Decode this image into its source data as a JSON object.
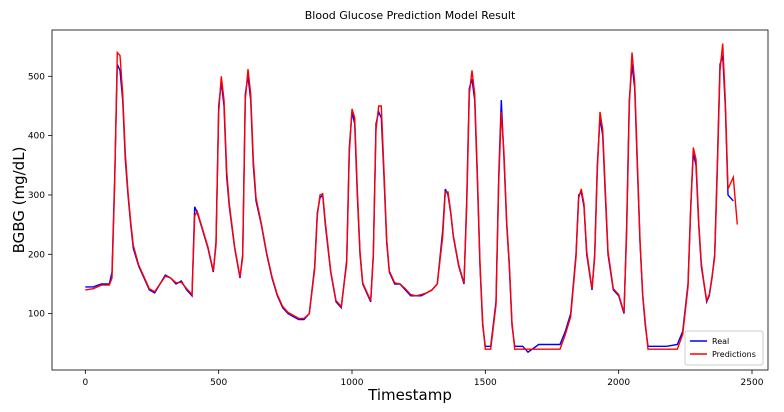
{
  "chart_data": {
    "type": "line",
    "title": "Blood Glucose Prediction Model Result",
    "x_label": "Timestamp",
    "y_label": "BGBG (mg/dL)",
    "xlim": [
      -125,
      2560
    ],
    "ylim": [
      5,
      578
    ],
    "xticks": [
      0,
      500,
      1000,
      1500,
      2000,
      2500
    ],
    "yticks": [
      100,
      200,
      300,
      400,
      500
    ],
    "legend": "lower right",
    "x": [
      0,
      30,
      60,
      90,
      100,
      110,
      120,
      130,
      140,
      150,
      160,
      170,
      180,
      200,
      220,
      240,
      260,
      280,
      300,
      320,
      340,
      360,
      380,
      400,
      410,
      420,
      440,
      460,
      480,
      490,
      500,
      510,
      520,
      530,
      540,
      560,
      580,
      590,
      600,
      610,
      620,
      630,
      640,
      660,
      680,
      700,
      720,
      740,
      760,
      780,
      800,
      820,
      840,
      860,
      870,
      880,
      890,
      900,
      920,
      940,
      960,
      980,
      990,
      1000,
      1010,
      1020,
      1030,
      1040,
      1060,
      1070,
      1080,
      1090,
      1100,
      1110,
      1120,
      1130,
      1140,
      1160,
      1180,
      1200,
      1220,
      1240,
      1260,
      1280,
      1300,
      1320,
      1340,
      1350,
      1360,
      1370,
      1380,
      1400,
      1420,
      1430,
      1440,
      1450,
      1460,
      1470,
      1480,
      1490,
      1500,
      1520,
      1540,
      1550,
      1560,
      1570,
      1580,
      1590,
      1600,
      1610,
      1640,
      1660,
      1700,
      1740,
      1780,
      1800,
      1820,
      1840,
      1850,
      1860,
      1870,
      1880,
      1900,
      1910,
      1920,
      1930,
      1940,
      1950,
      1960,
      1980,
      2000,
      2020,
      2030,
      2040,
      2050,
      2060,
      2070,
      2080,
      2090,
      2100,
      2110,
      2140,
      2180,
      2220,
      2240,
      2260,
      2270,
      2280,
      2290,
      2300,
      2310,
      2320,
      2330,
      2340,
      2350,
      2360,
      2370,
      2380,
      2390,
      2400,
      2410,
      2430,
      2445
    ],
    "series": [
      {
        "name": "Real",
        "color": "#0000ff",
        "values": [
          145,
          145,
          150,
          150,
          170,
          330,
          520,
          510,
          460,
          360,
          300,
          250,
          210,
          180,
          160,
          140,
          135,
          150,
          165,
          160,
          150,
          155,
          140,
          130,
          280,
          270,
          240,
          210,
          170,
          220,
          450,
          490,
          450,
          330,
          280,
          210,
          160,
          200,
          470,
          500,
          460,
          350,
          290,
          250,
          200,
          160,
          130,
          110,
          100,
          95,
          90,
          90,
          100,
          180,
          270,
          295,
          300,
          250,
          170,
          120,
          110,
          190,
          380,
          440,
          420,
          300,
          200,
          150,
          130,
          120,
          200,
          420,
          440,
          430,
          330,
          220,
          170,
          150,
          150,
          140,
          130,
          130,
          130,
          135,
          140,
          150,
          240,
          310,
          300,
          270,
          230,
          180,
          150,
          290,
          480,
          495,
          460,
          330,
          180,
          80,
          45,
          45,
          120,
          330,
          460,
          360,
          250,
          180,
          80,
          45,
          45,
          35,
          48,
          48,
          48,
          70,
          100,
          200,
          300,
          305,
          280,
          200,
          140,
          200,
          350,
          430,
          400,
          300,
          200,
          140,
          130,
          100,
          250,
          460,
          520,
          480,
          350,
          220,
          130,
          80,
          45,
          45,
          45,
          48,
          70,
          150,
          280,
          370,
          350,
          250,
          180,
          150,
          120,
          130,
          160,
          200,
          350,
          520,
          535,
          450,
          300,
          290,
          null
        ]
      },
      {
        "name": "Predictions",
        "color": "#ff0000",
        "values": [
          140,
          142,
          148,
          148,
          160,
          320,
          540,
          535,
          470,
          370,
          305,
          255,
          215,
          182,
          162,
          142,
          137,
          150,
          163,
          160,
          152,
          153,
          142,
          132,
          265,
          272,
          242,
          212,
          172,
          215,
          440,
          500,
          460,
          340,
          285,
          212,
          162,
          195,
          460,
          512,
          470,
          360,
          295,
          252,
          202,
          162,
          132,
          112,
          102,
          97,
          92,
          92,
          100,
          175,
          265,
          300,
          302,
          255,
          172,
          122,
          112,
          185,
          370,
          445,
          430,
          310,
          205,
          152,
          132,
          122,
          195,
          410,
          450,
          450,
          340,
          225,
          172,
          152,
          150,
          142,
          132,
          130,
          132,
          135,
          140,
          150,
          230,
          305,
          305,
          272,
          232,
          182,
          152,
          280,
          470,
          510,
          470,
          340,
          185,
          85,
          40,
          40,
          115,
          320,
          440,
          370,
          255,
          185,
          85,
          40,
          40,
          40,
          40,
          40,
          40,
          65,
          95,
          195,
          295,
          310,
          285,
          205,
          142,
          195,
          340,
          440,
          410,
          310,
          205,
          142,
          132,
          102,
          240,
          450,
          540,
          490,
          360,
          225,
          132,
          85,
          40,
          40,
          40,
          40,
          65,
          145,
          275,
          380,
          360,
          255,
          185,
          152,
          122,
          132,
          162,
          195,
          340,
          510,
          555,
          460,
          310,
          330,
          250
        ]
      }
    ]
  }
}
